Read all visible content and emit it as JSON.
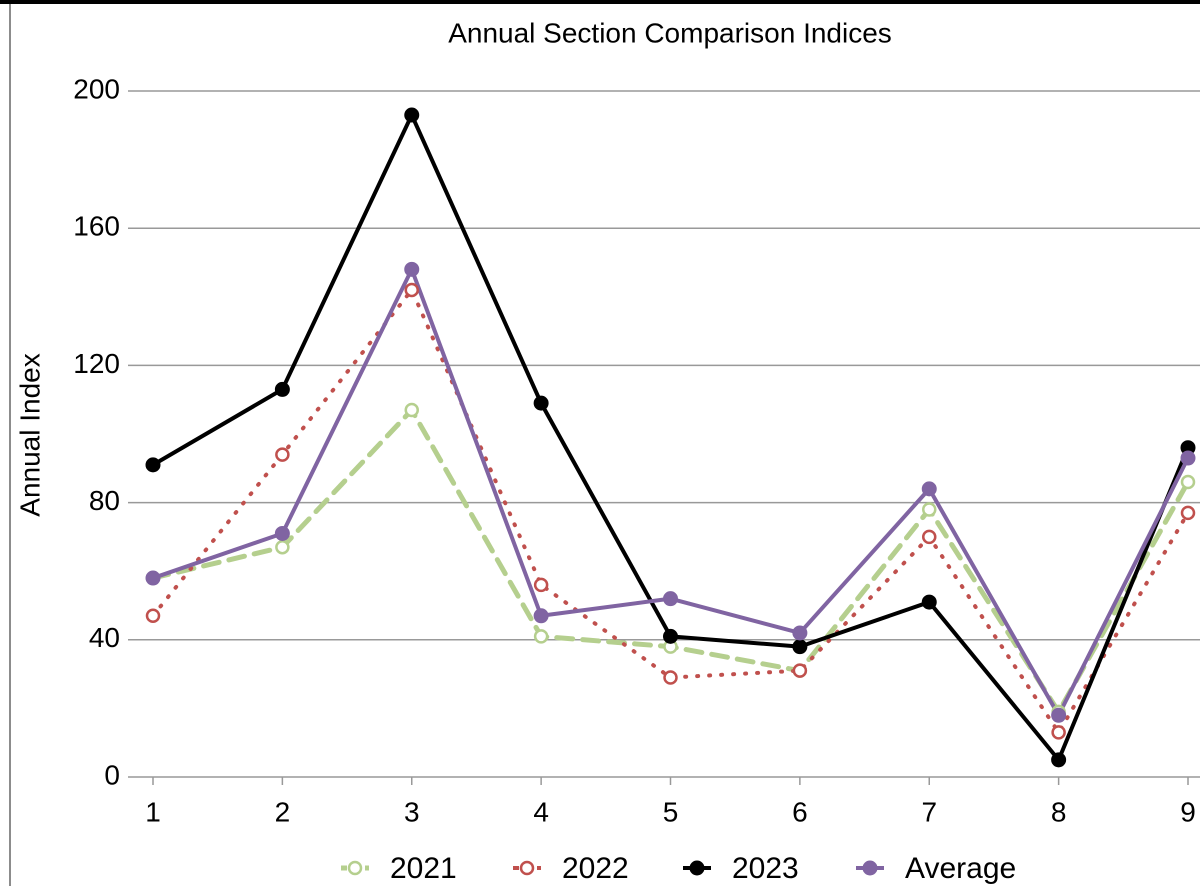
{
  "chart_data": {
    "type": "line",
    "title": "Annual Section Comparison Indices",
    "y_label": "Annual Index",
    "x": [
      1,
      2,
      3,
      4,
      5,
      6,
      7,
      8,
      9
    ],
    "xlim": [
      1,
      9
    ],
    "xticks": [
      1,
      2,
      3,
      4,
      5,
      6,
      7,
      8,
      9
    ],
    "ylim": [
      0,
      200
    ],
    "yticks": [
      0,
      40,
      80,
      120,
      160,
      200
    ],
    "grid": true,
    "legend": "bottom",
    "series": [
      {
        "name": "2021",
        "color": "#b5cf8e",
        "line": "dashed",
        "marker": "open",
        "values": [
          58,
          67,
          107,
          41,
          38,
          31,
          78,
          19,
          86
        ]
      },
      {
        "name": "2022",
        "color": "#c0504d",
        "line": "dotted",
        "marker": "open",
        "values": [
          47,
          94,
          142,
          56,
          29,
          31,
          70,
          13,
          77
        ]
      },
      {
        "name": "2023",
        "color": "#000000",
        "line": "solid",
        "marker": "filled",
        "values": [
          91,
          113,
          193,
          109,
          41,
          38,
          51,
          5,
          96
        ]
      },
      {
        "name": "Average",
        "color": "#8064a2",
        "line": "solid",
        "marker": "filled",
        "values": [
          58,
          71,
          148,
          47,
          52,
          42,
          84,
          18,
          93
        ]
      }
    ]
  }
}
